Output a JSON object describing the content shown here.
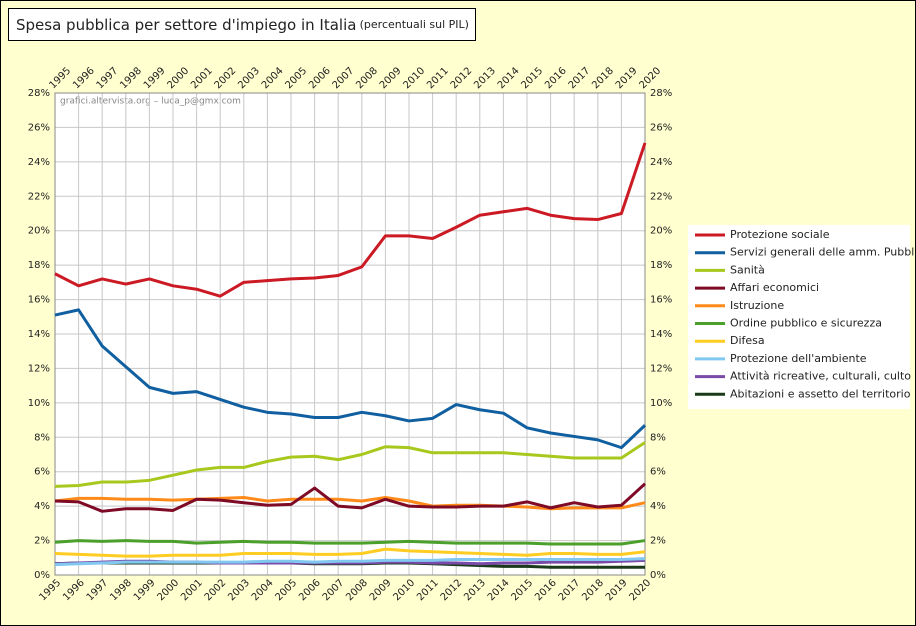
{
  "chart_data": {
    "type": "line",
    "title": "Spesa pubblica per settore d'impiego in Italia",
    "subtitle": "(percentuali sul PIL)",
    "annotation": "grafici.altervista.org – luca_p@gmx.com",
    "categories": [
      "1995",
      "1996",
      "1997",
      "1998",
      "1999",
      "2000",
      "2001",
      "2002",
      "2003",
      "2004",
      "2005",
      "2006",
      "2007",
      "2008",
      "2009",
      "2010",
      "2011",
      "2012",
      "2013",
      "2014",
      "2015",
      "2016",
      "2017",
      "2018",
      "2019",
      "2020"
    ],
    "ylim": [
      0,
      28
    ],
    "yticks": [
      {
        "value": 0,
        "label": "0%"
      },
      {
        "value": 2,
        "label": "2%"
      },
      {
        "value": 4,
        "label": "4%"
      },
      {
        "value": 6,
        "label": "6%"
      },
      {
        "value": 8,
        "label": "8%"
      },
      {
        "value": 10,
        "label": "10%"
      },
      {
        "value": 12,
        "label": "12%"
      },
      {
        "value": 14,
        "label": "14%"
      },
      {
        "value": 16,
        "label": "16%"
      },
      {
        "value": 18,
        "label": "18%"
      },
      {
        "value": 20,
        "label": "20%"
      },
      {
        "value": 22,
        "label": "22%"
      },
      {
        "value": 24,
        "label": "24%"
      },
      {
        "value": 26,
        "label": "26%"
      },
      {
        "value": 28,
        "label": "28%"
      }
    ],
    "grid": true,
    "legend": "right",
    "series": [
      {
        "name": "Protezione sociale",
        "color": "#cc1a24",
        "values": [
          17.5,
          16.8,
          17.2,
          16.9,
          17.2,
          16.8,
          16.6,
          16.2,
          17.0,
          17.1,
          17.2,
          17.25,
          17.4,
          17.9,
          19.7,
          19.7,
          19.55,
          20.2,
          20.9,
          21.1,
          21.3,
          20.9,
          20.7,
          20.65,
          21.0,
          25.1
        ]
      },
      {
        "name": "Servizi generali delle amm. Pubbl.",
        "color": "#105fa0",
        "values": [
          15.1,
          15.4,
          13.3,
          12.1,
          10.9,
          10.55,
          10.65,
          10.2,
          9.75,
          9.45,
          9.35,
          9.15,
          9.15,
          9.45,
          9.25,
          8.95,
          9.1,
          9.9,
          9.6,
          9.4,
          8.55,
          8.25,
          8.05,
          7.85,
          7.4,
          8.7
        ]
      },
      {
        "name": "Sanità",
        "color": "#a8c81e",
        "values": [
          5.15,
          5.2,
          5.4,
          5.4,
          5.5,
          5.8,
          6.1,
          6.25,
          6.25,
          6.6,
          6.85,
          6.9,
          6.7,
          7.0,
          7.45,
          7.4,
          7.1,
          7.1,
          7.1,
          7.1,
          7.0,
          6.9,
          6.8,
          6.8,
          6.8,
          7.7
        ]
      },
      {
        "name": "Affari economici",
        "color": "#7e0a26",
        "values": [
          4.3,
          4.25,
          3.7,
          3.85,
          3.85,
          3.75,
          4.4,
          4.35,
          4.2,
          4.05,
          4.1,
          5.05,
          4.0,
          3.9,
          4.4,
          4.0,
          3.95,
          3.95,
          4.0,
          4.0,
          4.25,
          3.9,
          4.2,
          3.95,
          4.05,
          5.3
        ]
      },
      {
        "name": "Istruzione",
        "color": "#ff8a1a",
        "values": [
          4.3,
          4.45,
          4.45,
          4.4,
          4.4,
          4.35,
          4.4,
          4.45,
          4.5,
          4.3,
          4.4,
          4.4,
          4.4,
          4.3,
          4.5,
          4.3,
          4.0,
          4.05,
          4.05,
          4.0,
          3.95,
          3.85,
          3.9,
          3.9,
          3.9,
          4.2
        ]
      },
      {
        "name": "Ordine pubblico e sicurezza",
        "color": "#4aa02a",
        "values": [
          1.9,
          2.0,
          1.95,
          2.0,
          1.95,
          1.95,
          1.85,
          1.9,
          1.95,
          1.9,
          1.9,
          1.85,
          1.85,
          1.85,
          1.9,
          1.95,
          1.9,
          1.85,
          1.85,
          1.85,
          1.85,
          1.8,
          1.8,
          1.8,
          1.8,
          2.0
        ]
      },
      {
        "name": "Difesa",
        "color": "#ffcc22",
        "values": [
          1.25,
          1.2,
          1.15,
          1.1,
          1.1,
          1.15,
          1.15,
          1.15,
          1.25,
          1.25,
          1.25,
          1.2,
          1.2,
          1.25,
          1.5,
          1.4,
          1.35,
          1.3,
          1.25,
          1.2,
          1.15,
          1.25,
          1.25,
          1.2,
          1.2,
          1.35
        ]
      },
      {
        "name": "Protezione dell'ambiente",
        "color": "#80c8f0",
        "values": [
          0.6,
          0.65,
          0.7,
          0.75,
          0.75,
          0.75,
          0.75,
          0.75,
          0.75,
          0.8,
          0.8,
          0.75,
          0.8,
          0.8,
          0.85,
          0.85,
          0.85,
          0.9,
          0.9,
          0.9,
          0.9,
          0.9,
          0.9,
          0.9,
          0.9,
          0.95
        ]
      },
      {
        "name": "Attività ricreative, culturali, culto",
        "color": "#7a4aa8",
        "values": [
          0.65,
          0.7,
          0.75,
          0.8,
          0.8,
          0.75,
          0.75,
          0.7,
          0.7,
          0.7,
          0.7,
          0.7,
          0.7,
          0.7,
          0.75,
          0.75,
          0.7,
          0.7,
          0.65,
          0.7,
          0.7,
          0.75,
          0.75,
          0.75,
          0.8,
          0.85
        ]
      },
      {
        "name": "Abitazioni e assetto del territorio",
        "color": "#1a3a1a",
        "values": [
          0.65,
          0.7,
          0.7,
          0.7,
          0.7,
          0.7,
          0.7,
          0.7,
          0.7,
          0.7,
          0.7,
          0.65,
          0.65,
          0.65,
          0.7,
          0.7,
          0.65,
          0.6,
          0.55,
          0.5,
          0.5,
          0.45,
          0.45,
          0.45,
          0.45,
          0.45
        ]
      }
    ]
  }
}
